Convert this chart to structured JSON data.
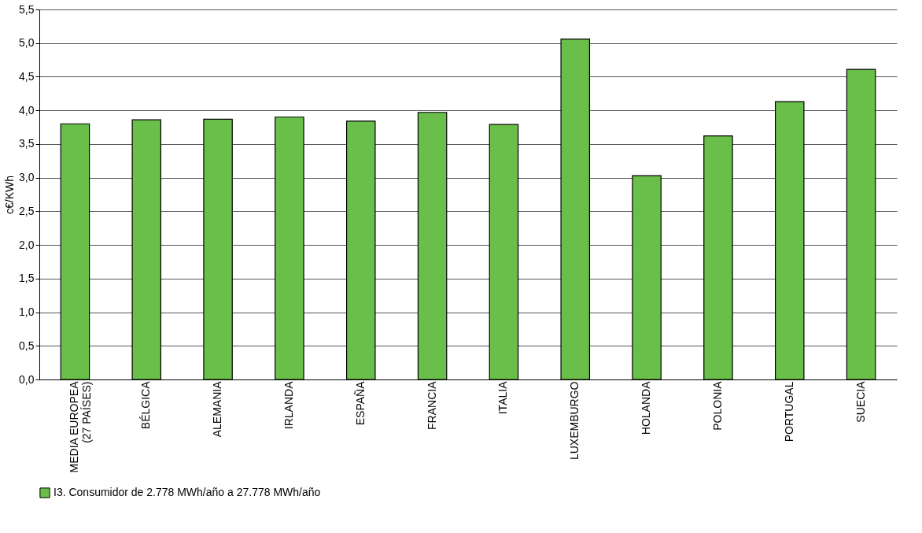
{
  "chart_data": {
    "type": "bar",
    "ylabel": "c€/KWh",
    "categories": [
      "MEDIA EUROPEA\n(27 PAÍSES)",
      "BÉLGICA",
      "ALEMANIA",
      "IRLANDA",
      "ESPAÑA",
      "FRANCIA",
      "ITALIA",
      "LUXEMBURGO",
      "HOLANDA",
      "POLONIA",
      "PORTUGAL",
      "SUECIA"
    ],
    "series": [
      {
        "name": "I3. Consumidor de 2.778 MWh/año a 27.778 MWh/año",
        "color": "#6abf4b",
        "values": [
          3.8,
          3.86,
          3.87,
          3.9,
          3.84,
          3.97,
          3.79,
          5.06,
          3.03,
          3.62,
          4.13,
          4.61
        ]
      }
    ],
    "ylim": [
      0,
      5.5
    ],
    "yticks": [
      {
        "value": 0,
        "label": "0,0"
      },
      {
        "value": 0.5,
        "label": "0,5"
      },
      {
        "value": 1,
        "label": "1,0"
      },
      {
        "value": 1.5,
        "label": "1,5"
      },
      {
        "value": 2,
        "label": "2,0"
      },
      {
        "value": 2.5,
        "label": "2,5"
      },
      {
        "value": 3,
        "label": "3,0"
      },
      {
        "value": 3.5,
        "label": "3,5"
      },
      {
        "value": 4,
        "label": "4,0"
      },
      {
        "value": 4.5,
        "label": "4,5"
      },
      {
        "value": 5,
        "label": "5,0"
      },
      {
        "value": 5.5,
        "label": "5,5"
      }
    ],
    "grid": "y",
    "legend": "bottom"
  }
}
